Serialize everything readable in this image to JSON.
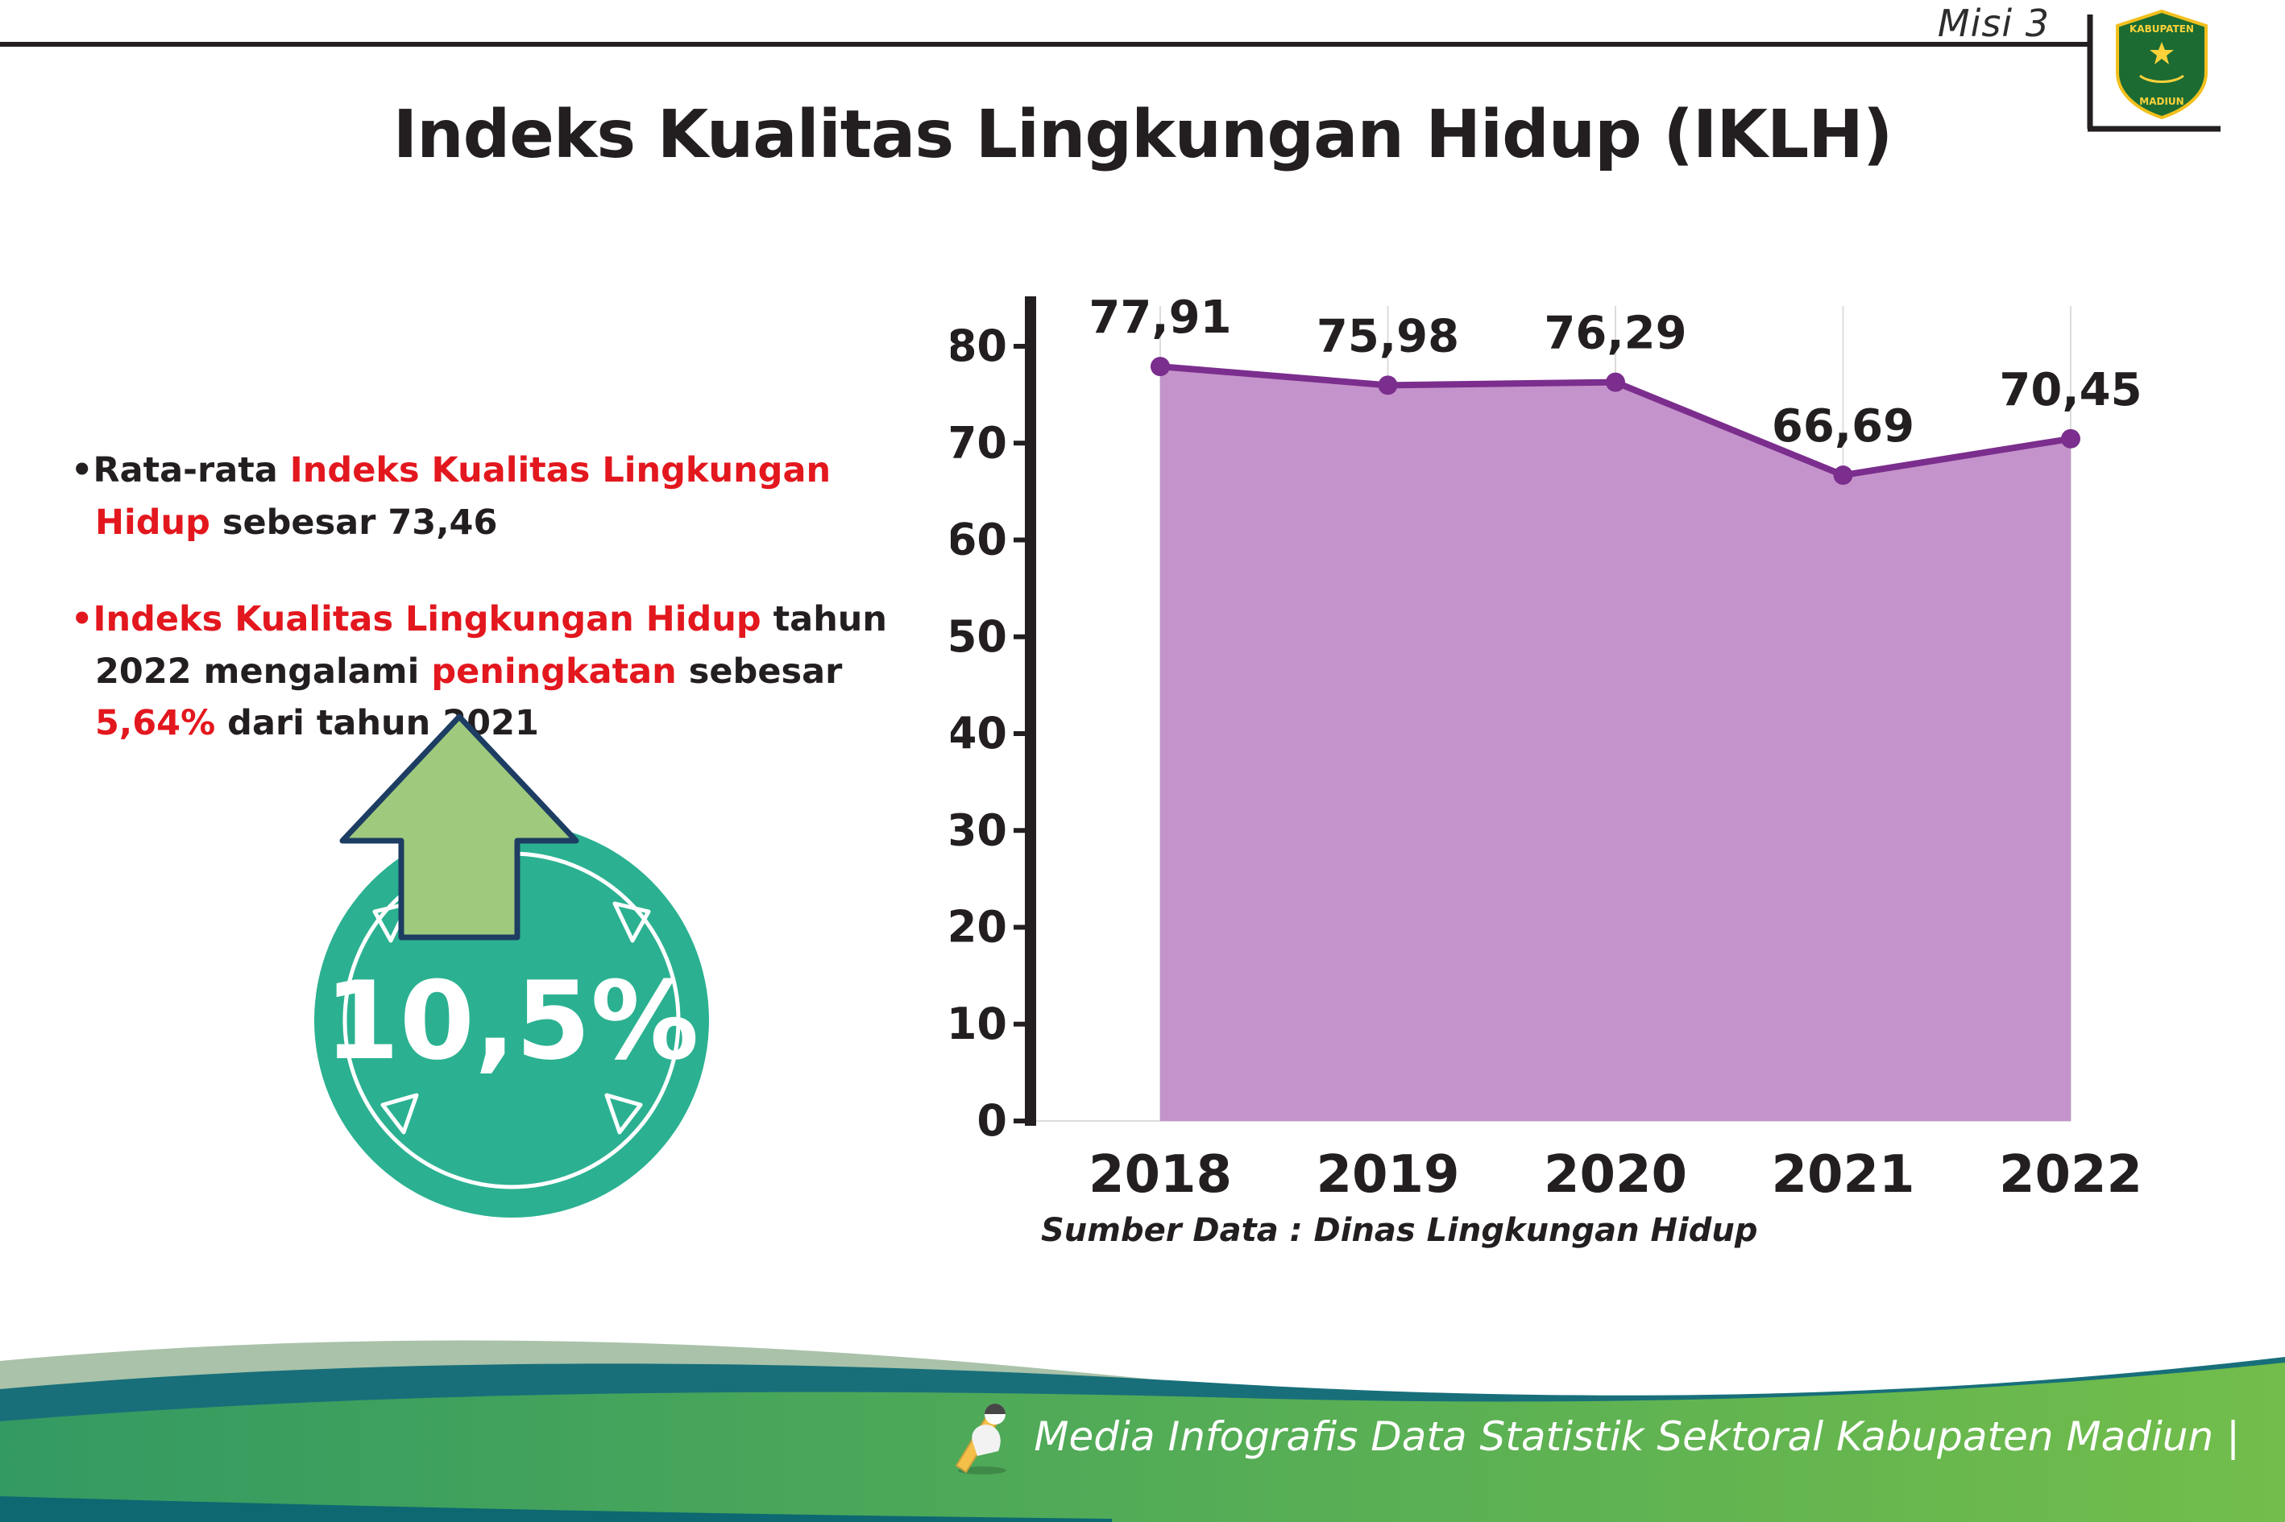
{
  "colors": {
    "text": "#231f20",
    "red": "#e3171e",
    "area_fill": "#c493cb",
    "line": "#7b2e8d",
    "grid": "#dcdcdc",
    "badge_circle": "#2bb191",
    "arrow_fill": "#9fca7d",
    "arrow_outline": "#1d3d63",
    "footer_sage": "#a9c2a9",
    "footer_teal": "#186f7a",
    "footer_green_left": "#339a62",
    "footer_green_right": "#72bd4b",
    "footer_strip": "#0d6872",
    "logo_green": "#1b6b33",
    "logo_yellow": "#f2c01d"
  },
  "header": {
    "misi_label": "Misi 3",
    "title": "Indeks Kualitas Lingkungan Hidup (IKLH)",
    "logo": {
      "top_text": "KABUPATEN",
      "bottom_text": "MADIUN"
    }
  },
  "bullets": [
    {
      "segments": [
        {
          "text": "Rata-rata ",
          "red": false
        },
        {
          "text": "Indeks Kualitas Lingkungan Hidup",
          "red": true
        },
        {
          "text": " sebesar 73,46",
          "red": false
        }
      ]
    },
    {
      "segments": [
        {
          "text": "Indeks Kualitas Lingkungan Hidup",
          "red": true
        },
        {
          "text": " tahun 2022 mengalami ",
          "red": false
        },
        {
          "text": "peningkatan",
          "red": true
        },
        {
          "text": " sebesar ",
          "red": false
        },
        {
          "text": "5,64%",
          "red": true
        },
        {
          "text": " dari tahun 2021",
          "red": false
        }
      ]
    }
  ],
  "badge": {
    "value": "10,5%"
  },
  "chart_data": {
    "type": "area",
    "title": "Indeks Kualitas Lingkungan Hidup (IKLH)",
    "categories": [
      "2018",
      "2019",
      "2020",
      "2021",
      "2022"
    ],
    "values": [
      77.91,
      75.98,
      76.29,
      66.69,
      70.45
    ],
    "point_labels": [
      "77,91",
      "75,98",
      "76,29",
      "66,69",
      "70,45"
    ],
    "ylim": [
      0,
      80
    ],
    "yticks": [
      0,
      10,
      20,
      30,
      40,
      50,
      60,
      70,
      80
    ],
    "grid": "vertical",
    "legend": "none",
    "source_note": "Sumber Data : Dinas Lingkungan Hidup"
  },
  "footer": {
    "credit": "Media Infografis Data Statistik Sektoral Kabupaten Madiun |"
  }
}
